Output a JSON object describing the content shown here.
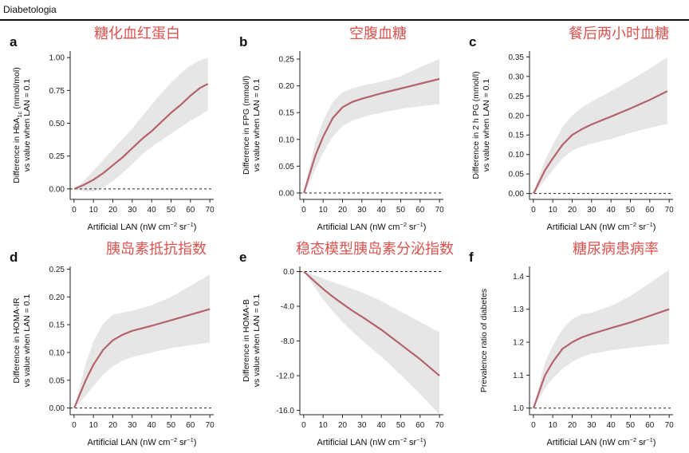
{
  "header": {
    "journal": "Diabetologia"
  },
  "colors": {
    "line": "#b5636a",
    "band": "#e6e6e6",
    "title": "#d9534f",
    "axis": "#222222"
  },
  "chart_data": [
    {
      "type": "line",
      "panel": "a",
      "title": "糖化血红蛋白",
      "ylabel1": "Difference in HbA",
      "ysub": "1c",
      "yunit": " (mmol/mol)",
      "ylabel2": "vs value when LAN = 0.1",
      "xlabel": "Artificial LAN (nW cm",
      "xsup1": "−2",
      "xmid": " sr",
      "xsup2": "−1",
      "xend": ")",
      "xlim": [
        -2,
        72
      ],
      "ylim": [
        -0.08,
        1.05
      ],
      "xticks": [
        0,
        10,
        20,
        30,
        40,
        50,
        60,
        70
      ],
      "xtick_labels": [
        "0",
        "10",
        "20",
        "30",
        "40",
        "50",
        "60",
        "70"
      ],
      "yticks": [
        0,
        0.25,
        0.5,
        0.75,
        1.0
      ],
      "ytick_labels": [
        "0.00",
        "0.25",
        "0.50",
        "0.75",
        "1.00"
      ],
      "reference_y": 0,
      "x": [
        0.1,
        5,
        10,
        15,
        20,
        25,
        30,
        35,
        40,
        45,
        50,
        55,
        60,
        65,
        69
      ],
      "y": [
        0,
        0.03,
        0.07,
        0.12,
        0.18,
        0.24,
        0.31,
        0.38,
        0.44,
        0.51,
        0.58,
        0.64,
        0.71,
        0.77,
        0.8
      ],
      "ci_low": [
        0,
        -0.02,
        -0.02,
        0.01,
        0.06,
        0.12,
        0.19,
        0.26,
        0.32,
        0.37,
        0.42,
        0.47,
        0.52,
        0.56,
        0.6
      ],
      "ci_high": [
        0,
        0.06,
        0.14,
        0.22,
        0.3,
        0.38,
        0.46,
        0.55,
        0.64,
        0.73,
        0.81,
        0.88,
        0.94,
        0.98,
        1.0
      ]
    },
    {
      "type": "line",
      "panel": "b",
      "title": "空腹血糖",
      "ylabel1": "Difference in FPG (mmol/l)",
      "ysub": "",
      "yunit": "",
      "ylabel2": "vs value when LAN = 0.1",
      "xlabel": "Artificial LAN (nW cm",
      "xsup1": "−2",
      "xmid": " sr",
      "xsup2": "−1",
      "xend": ")",
      "xlim": [
        -2,
        72
      ],
      "ylim": [
        -0.012,
        0.265
      ],
      "xticks": [
        0,
        10,
        20,
        30,
        40,
        50,
        60,
        70
      ],
      "xtick_labels": [
        "0",
        "10",
        "20",
        "30",
        "40",
        "50",
        "60",
        "70"
      ],
      "yticks": [
        0,
        0.05,
        0.1,
        0.15,
        0.2,
        0.25
      ],
      "ytick_labels": [
        "0.00",
        "0.05",
        "0.10",
        "0.15",
        "0.20",
        "0.25"
      ],
      "reference_y": 0,
      "x": [
        0.1,
        3,
        6,
        10,
        15,
        20,
        25,
        30,
        35,
        40,
        50,
        60,
        70
      ],
      "y": [
        0,
        0.035,
        0.07,
        0.105,
        0.14,
        0.16,
        0.17,
        0.176,
        0.181,
        0.186,
        0.195,
        0.204,
        0.213
      ],
      "ci_low": [
        0,
        0.02,
        0.045,
        0.075,
        0.105,
        0.125,
        0.135,
        0.141,
        0.146,
        0.15,
        0.157,
        0.162,
        0.166
      ],
      "ci_high": [
        0,
        0.05,
        0.095,
        0.135,
        0.17,
        0.188,
        0.195,
        0.2,
        0.204,
        0.208,
        0.218,
        0.235,
        0.25
      ]
    },
    {
      "type": "line",
      "panel": "c",
      "title": "餐后两小时血糖",
      "ylabel1": "Difference in 2 h PG (mmol/l)",
      "ysub": "",
      "yunit": "",
      "ylabel2": "vs value when LAN = 0.1",
      "xlabel": "Artificial LAN (nW cm",
      "xsup1": "−2",
      "xmid": " sr",
      "xsup2": "−1",
      "xend": ")",
      "xlim": [
        -2,
        72
      ],
      "ylim": [
        -0.015,
        0.365
      ],
      "xticks": [
        0,
        10,
        20,
        30,
        40,
        50,
        60,
        70
      ],
      "xtick_labels": [
        "0",
        "10",
        "20",
        "30",
        "40",
        "50",
        "60",
        "70"
      ],
      "yticks": [
        0,
        0.05,
        0.1,
        0.15,
        0.2,
        0.25,
        0.3,
        0.35
      ],
      "ytick_labels": [
        "0.00",
        "0.05",
        "0.10",
        "0.15",
        "0.20",
        "0.25",
        "0.30",
        "0.35"
      ],
      "reference_y": 0,
      "x": [
        0.1,
        3,
        6,
        10,
        15,
        20,
        25,
        30,
        40,
        50,
        60,
        69
      ],
      "y": [
        0,
        0.03,
        0.06,
        0.09,
        0.125,
        0.15,
        0.165,
        0.177,
        0.197,
        0.218,
        0.24,
        0.262
      ],
      "ci_low": [
        0,
        0.015,
        0.035,
        0.06,
        0.09,
        0.11,
        0.12,
        0.128,
        0.14,
        0.155,
        0.168,
        0.178
      ],
      "ci_high": [
        0,
        0.045,
        0.085,
        0.125,
        0.17,
        0.2,
        0.22,
        0.235,
        0.262,
        0.29,
        0.32,
        0.348
      ]
    },
    {
      "type": "line",
      "panel": "d",
      "title": "胰岛素抵抗指数",
      "ylabel1": "Difference in HOMA-IR",
      "ysub": "",
      "yunit": "",
      "ylabel2": "vs value when LAN = 0.1",
      "xlabel": "Artificial LAN (nW cm",
      "xsup1": "−2",
      "xmid": " sr",
      "xsup2": "−1",
      "xend": ")",
      "xlim": [
        -2,
        72
      ],
      "ylim": [
        -0.012,
        0.255
      ],
      "xticks": [
        0,
        10,
        20,
        30,
        40,
        50,
        60,
        70
      ],
      "xtick_labels": [
        "0",
        "10",
        "20",
        "30",
        "40",
        "50",
        "60",
        "70"
      ],
      "yticks": [
        0,
        0.05,
        0.1,
        0.15,
        0.2,
        0.25
      ],
      "ytick_labels": [
        "0.00",
        "0.05",
        "0.10",
        "0.15",
        "0.20",
        "0.25"
      ],
      "reference_y": 0,
      "x": [
        0.1,
        3,
        6,
        10,
        15,
        20,
        25,
        30,
        40,
        50,
        60,
        70
      ],
      "y": [
        0,
        0.025,
        0.05,
        0.078,
        0.105,
        0.122,
        0.132,
        0.139,
        0.148,
        0.158,
        0.168,
        0.178
      ],
      "ci_low": [
        0,
        0.01,
        0.022,
        0.04,
        0.06,
        0.075,
        0.085,
        0.092,
        0.1,
        0.108,
        0.113,
        0.118
      ],
      "ci_high": [
        0,
        0.04,
        0.08,
        0.12,
        0.152,
        0.168,
        0.172,
        0.175,
        0.185,
        0.2,
        0.22,
        0.24
      ]
    },
    {
      "type": "line",
      "panel": "e",
      "title": "稳态模型胰岛素分泌指数",
      "ylabel1": "Difference in HOMA-B",
      "ysub": "",
      "yunit": "",
      "ylabel2": "vs value when LAN = 0.1",
      "xlabel": "Artificial LAN (nW cm",
      "xsup1": "−2",
      "xmid": " sr",
      "xsup2": "−1",
      "xend": ")",
      "xlim": [
        -2,
        72
      ],
      "ylim": [
        -16.5,
        0.6
      ],
      "xticks": [
        0,
        10,
        20,
        30,
        40,
        50,
        60,
        70
      ],
      "xtick_labels": [
        "0",
        "10",
        "20",
        "30",
        "40",
        "50",
        "60",
        "70"
      ],
      "yticks": [
        0,
        -4,
        -8,
        -12,
        -16
      ],
      "ytick_labels": [
        "0.0",
        "-4.0",
        "-8.0",
        "-12.0",
        "-16.0"
      ],
      "reference_y": 0,
      "x": [
        0.1,
        5,
        10,
        15,
        20,
        25,
        30,
        40,
        50,
        60,
        70
      ],
      "y": [
        0,
        -1.0,
        -2.0,
        -2.9,
        -3.7,
        -4.5,
        -5.2,
        -6.7,
        -8.4,
        -10.1,
        -12.0
      ],
      "ci_low": [
        0,
        -1.6,
        -3.2,
        -4.6,
        -5.8,
        -6.9,
        -7.9,
        -9.8,
        -11.9,
        -14.1,
        -16.5
      ],
      "ci_high": [
        0,
        -0.4,
        -0.8,
        -1.2,
        -1.6,
        -2.0,
        -2.4,
        -3.4,
        -4.6,
        -5.8,
        -7.0
      ]
    },
    {
      "type": "line",
      "panel": "f",
      "title": "糖尿病患病率",
      "ylabel1": "Prevalence ratio of diabetes",
      "ysub": "",
      "yunit": "",
      "ylabel2": "",
      "xlabel": "Artificial LAN (nW cm",
      "xsup1": "−2",
      "xmid": " sr",
      "xsup2": "−1",
      "xend": ")",
      "xlim": [
        -2,
        72
      ],
      "ylim": [
        0.98,
        1.43
      ],
      "xticks": [
        0,
        10,
        20,
        30,
        40,
        50,
        60,
        70
      ],
      "xtick_labels": [
        "0",
        "10",
        "20",
        "30",
        "40",
        "50",
        "60",
        "70"
      ],
      "yticks": [
        1.0,
        1.1,
        1.2,
        1.3,
        1.4
      ],
      "ytick_labels": [
        "1.0",
        "1.1",
        "1.2",
        "1.3",
        "1.4"
      ],
      "reference_y": 1.0,
      "x": [
        0.1,
        3,
        6,
        10,
        15,
        20,
        25,
        30,
        40,
        50,
        60,
        70
      ],
      "y": [
        1.0,
        1.05,
        1.1,
        1.14,
        1.18,
        1.2,
        1.215,
        1.225,
        1.243,
        1.26,
        1.28,
        1.3
      ],
      "ci_low": [
        1.0,
        1.03,
        1.06,
        1.09,
        1.12,
        1.14,
        1.155,
        1.165,
        1.175,
        1.183,
        1.19,
        1.195
      ],
      "ci_high": [
        1.0,
        1.07,
        1.14,
        1.19,
        1.24,
        1.27,
        1.285,
        1.29,
        1.31,
        1.34,
        1.38,
        1.42
      ]
    }
  ]
}
